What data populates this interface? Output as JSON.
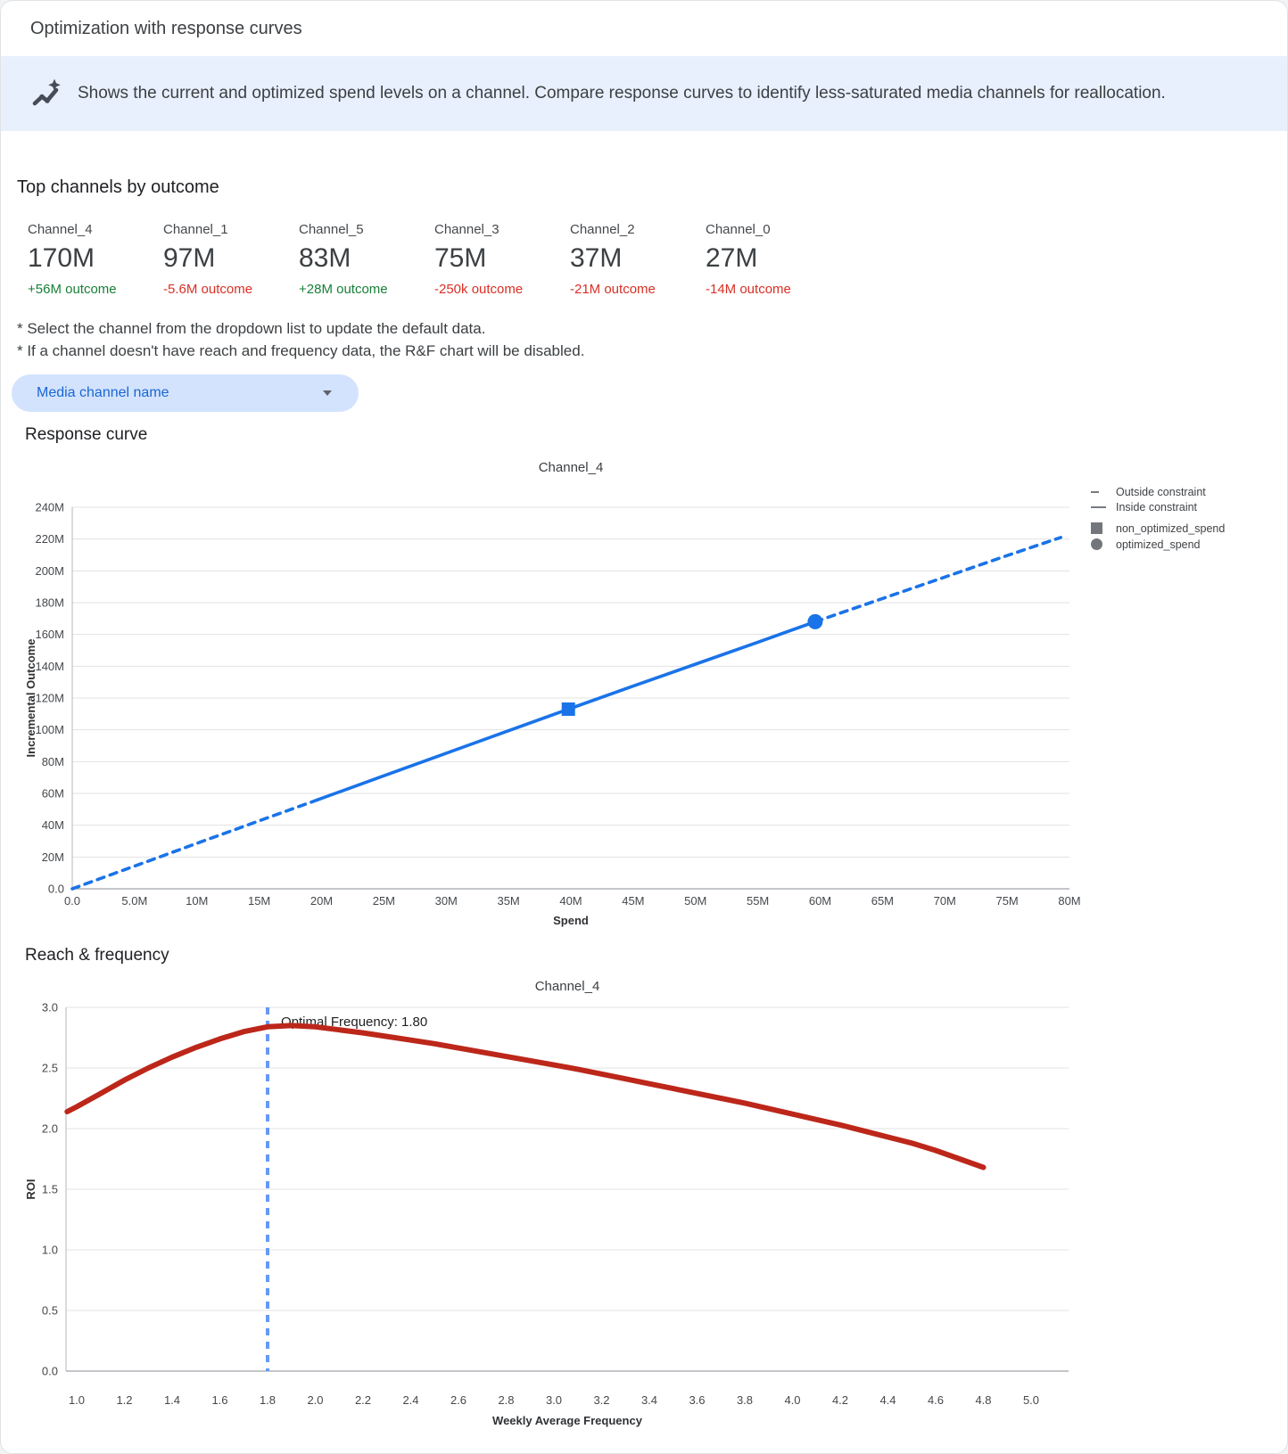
{
  "header": {
    "title": "Optimization with response curves"
  },
  "banner": {
    "icon": "insights-icon",
    "text": "Shows the current and optimized spend levels on a channel. Compare response curves to identify less-saturated media channels for reallocation."
  },
  "top_channels": {
    "heading": "Top channels by outcome",
    "channels": [
      {
        "name": "Channel_4",
        "value": "170M",
        "delta": "+56M outcome",
        "direction": "up"
      },
      {
        "name": "Channel_1",
        "value": "97M",
        "delta": "-5.6M outcome",
        "direction": "down"
      },
      {
        "name": "Channel_5",
        "value": "83M",
        "delta": "+28M outcome",
        "direction": "up"
      },
      {
        "name": "Channel_3",
        "value": "75M",
        "delta": "-250k outcome",
        "direction": "down"
      },
      {
        "name": "Channel_2",
        "value": "37M",
        "delta": "-21M outcome",
        "direction": "down"
      },
      {
        "name": "Channel_0",
        "value": "27M",
        "delta": "-14M outcome",
        "direction": "down"
      }
    ]
  },
  "notes": {
    "line1": "* Select the channel from the dropdown list to update the default data.",
    "line2": "* If a channel doesn't have reach and frequency data, the R&F chart will be disabled."
  },
  "dropdown": {
    "label": "Media channel name"
  },
  "sections": {
    "response_curve": "Response curve",
    "reach_frequency": "Reach & frequency"
  },
  "colors": {
    "accent_blue": "#1a73e8",
    "curve_red": "#bc271a",
    "optimal_line_blue": "#6699f8",
    "positive_green": "#188038",
    "negative_red": "#d93025",
    "banner_bg": "#e8f0fe",
    "dropdown_bg": "#d3e3fd"
  },
  "chart_data": [
    {
      "type": "line",
      "title": "Channel_4",
      "xlabel": "Spend",
      "ylabel": "Incremental Outcome",
      "xlim": [
        0,
        80
      ],
      "ylim": [
        0,
        240
      ],
      "grid": "horizontal",
      "xticks": {
        "values": [
          0,
          5,
          10,
          15,
          20,
          25,
          30,
          35,
          40,
          45,
          50,
          55,
          60,
          65,
          70,
          75,
          80
        ],
        "labels": [
          "0.0",
          "5.0M",
          "10M",
          "15M",
          "20M",
          "25M",
          "30M",
          "35M",
          "40M",
          "45M",
          "50M",
          "55M",
          "60M",
          "65M",
          "70M",
          "75M",
          "80M"
        ]
      },
      "yticks": {
        "values": [
          0,
          20,
          40,
          60,
          80,
          100,
          120,
          140,
          160,
          180,
          200,
          220,
          240
        ],
        "labels": [
          "0.0",
          "20M",
          "40M",
          "60M",
          "80M",
          "100M",
          "120M",
          "140M",
          "160M",
          "180M",
          "200M",
          "220M",
          "240M"
        ]
      },
      "series": [
        {
          "name": "outside-constraint-lower",
          "style": "dashed",
          "color": "#1a73e8",
          "width": 3.6,
          "points": [
            [
              0,
              0
            ],
            [
              5,
              14.3
            ],
            [
              10,
              28.6
            ],
            [
              15,
              42.8
            ],
            [
              19.7,
              56
            ]
          ]
        },
        {
          "name": "inside-constraint",
          "style": "solid",
          "color": "#1a73e8",
          "width": 3.6,
          "points": [
            [
              19.7,
              56
            ],
            [
              25,
              71.1
            ],
            [
              30,
              85.3
            ],
            [
              35,
              99.4
            ],
            [
              39.8,
              113
            ],
            [
              45,
              127.5
            ],
            [
              50,
              141.3
            ],
            [
              55,
              155.1
            ],
            [
              59.6,
              168
            ]
          ]
        },
        {
          "name": "outside-constraint-upper",
          "style": "dashed",
          "color": "#1a73e8",
          "width": 3.6,
          "points": [
            [
              59.6,
              168
            ],
            [
              65,
              182.6
            ],
            [
              70,
              196.1
            ],
            [
              75,
              209.6
            ],
            [
              79.3,
              221
            ]
          ]
        }
      ],
      "markers": [
        {
          "name": "non_optimized_spend",
          "shape": "square",
          "x": 39.8,
          "y": 113,
          "color": "#1a73e8"
        },
        {
          "name": "optimized_spend",
          "shape": "circle",
          "x": 59.6,
          "y": 168,
          "color": "#1a73e8"
        }
      ],
      "legend": [
        {
          "label": "Outside constraint",
          "symbol": "dash"
        },
        {
          "label": "Inside constraint",
          "symbol": "line"
        },
        {
          "label": "non_optimized_spend",
          "symbol": "square"
        },
        {
          "label": "optimized_spend",
          "symbol": "circle"
        }
      ],
      "legend_position": "top-right"
    },
    {
      "type": "line",
      "title": "Channel_4",
      "xlabel": "Weekly Average Frequency",
      "ylabel": "ROI",
      "xlim": [
        1,
        5
      ],
      "ylim": [
        0,
        3
      ],
      "grid": "horizontal",
      "xticks": {
        "values": [
          1.0,
          1.2,
          1.4,
          1.6,
          1.8,
          2.0,
          2.2,
          2.4,
          2.6,
          2.8,
          3.0,
          3.2,
          3.4,
          3.6,
          3.8,
          4.0,
          4.2,
          4.4,
          4.6,
          4.8,
          5.0
        ],
        "labels": [
          "1.0",
          "1.2",
          "1.4",
          "1.6",
          "1.8",
          "2.0",
          "2.2",
          "2.4",
          "2.6",
          "2.8",
          "3.0",
          "3.2",
          "3.4",
          "3.6",
          "3.8",
          "4.0",
          "4.2",
          "4.4",
          "4.6",
          "4.8",
          "5.0"
        ]
      },
      "yticks": {
        "values": [
          0,
          0.5,
          1.0,
          1.5,
          2.0,
          2.5,
          3.0
        ],
        "labels": [
          "0.0",
          "0.5",
          "1.0",
          "1.5",
          "2.0",
          "2.5",
          "3.0"
        ]
      },
      "series": [
        {
          "name": "roi-curve",
          "style": "solid",
          "color": "#bc271a",
          "width": 6,
          "points": [
            [
              0.96,
              2.14
            ],
            [
              1.0,
              2.18
            ],
            [
              1.1,
              2.29
            ],
            [
              1.2,
              2.4
            ],
            [
              1.3,
              2.5
            ],
            [
              1.4,
              2.59
            ],
            [
              1.5,
              2.67
            ],
            [
              1.6,
              2.74
            ],
            [
              1.7,
              2.8
            ],
            [
              1.8,
              2.84
            ],
            [
              1.9,
              2.85
            ],
            [
              2.0,
              2.84
            ],
            [
              2.1,
              2.815
            ],
            [
              2.2,
              2.79
            ],
            [
              2.3,
              2.76
            ],
            [
              2.4,
              2.73
            ],
            [
              2.5,
              2.7
            ],
            [
              2.6,
              2.665
            ],
            [
              2.7,
              2.63
            ],
            [
              2.8,
              2.595
            ],
            [
              2.9,
              2.56
            ],
            [
              3.0,
              2.525
            ],
            [
              3.1,
              2.49
            ],
            [
              3.2,
              2.45
            ],
            [
              3.3,
              2.41
            ],
            [
              3.4,
              2.37
            ],
            [
              3.5,
              2.33
            ],
            [
              3.6,
              2.29
            ],
            [
              3.7,
              2.25
            ],
            [
              3.8,
              2.21
            ],
            [
              3.9,
              2.165
            ],
            [
              4.0,
              2.12
            ],
            [
              4.1,
              2.075
            ],
            [
              4.2,
              2.03
            ],
            [
              4.3,
              1.98
            ],
            [
              4.4,
              1.93
            ],
            [
              4.5,
              1.88
            ],
            [
              4.6,
              1.82
            ],
            [
              4.7,
              1.75
            ],
            [
              4.8,
              1.68
            ]
          ]
        }
      ],
      "optimal_frequency": {
        "value": 1.8,
        "label": "Optimal Frequency: 1.80",
        "line_color": "#6699f8"
      }
    }
  ]
}
